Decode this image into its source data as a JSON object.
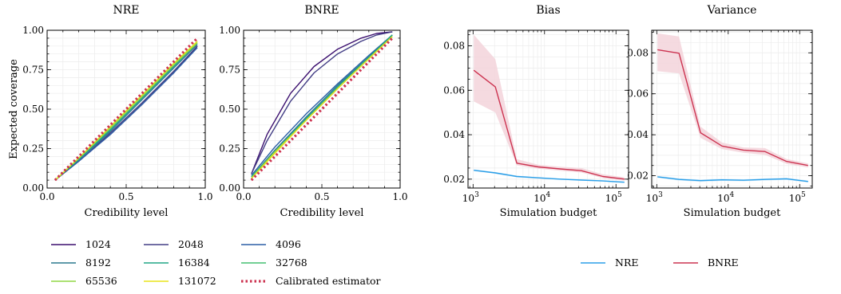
{
  "chart_data": [
    {
      "id": "nre",
      "type": "line",
      "title": "NRE",
      "xlabel": "Credibility level",
      "ylabel": "Expected coverage",
      "xlim": [
        0,
        1
      ],
      "ylim": [
        0,
        1
      ],
      "xticks": [
        "0.0",
        "0.5",
        "1.0"
      ],
      "yticks": [
        "0.00",
        "0.25",
        "0.50",
        "0.75",
        "1.00"
      ],
      "series": [
        {
          "name": "1024",
          "x": [
            0.05,
            0.2,
            0.4,
            0.6,
            0.8,
            0.95
          ],
          "y": [
            0.05,
            0.17,
            0.34,
            0.53,
            0.73,
            0.9
          ]
        },
        {
          "name": "2048",
          "x": [
            0.05,
            0.2,
            0.4,
            0.6,
            0.8,
            0.95
          ],
          "y": [
            0.05,
            0.17,
            0.35,
            0.54,
            0.74,
            0.9
          ]
        },
        {
          "name": "4096",
          "x": [
            0.05,
            0.2,
            0.4,
            0.6,
            0.8,
            0.95
          ],
          "y": [
            0.05,
            0.17,
            0.34,
            0.53,
            0.73,
            0.89
          ]
        },
        {
          "name": "8192",
          "x": [
            0.05,
            0.2,
            0.4,
            0.6,
            0.8,
            0.95
          ],
          "y": [
            0.05,
            0.18,
            0.36,
            0.56,
            0.76,
            0.91
          ]
        },
        {
          "name": "16384",
          "x": [
            0.05,
            0.2,
            0.4,
            0.6,
            0.8,
            0.95
          ],
          "y": [
            0.05,
            0.18,
            0.37,
            0.57,
            0.77,
            0.92
          ]
        },
        {
          "name": "32768",
          "x": [
            0.05,
            0.2,
            0.4,
            0.6,
            0.8,
            0.95
          ],
          "y": [
            0.05,
            0.19,
            0.38,
            0.58,
            0.78,
            0.93
          ]
        },
        {
          "name": "65536",
          "x": [
            0.05,
            0.2,
            0.4,
            0.6,
            0.8,
            0.95
          ],
          "y": [
            0.05,
            0.19,
            0.38,
            0.58,
            0.78,
            0.92
          ]
        },
        {
          "name": "131072",
          "x": [
            0.05,
            0.2,
            0.4,
            0.6,
            0.8,
            0.95
          ],
          "y": [
            0.05,
            0.19,
            0.39,
            0.59,
            0.79,
            0.93
          ]
        }
      ],
      "reference": {
        "name": "Calibrated estimator",
        "x": [
          0.05,
          0.95
        ],
        "y": [
          0.05,
          0.95
        ]
      }
    },
    {
      "id": "bnre",
      "type": "line",
      "title": "BNRE",
      "xlabel": "Credibility level",
      "xlim": [
        0,
        1
      ],
      "ylim": [
        0,
        1
      ],
      "xticks": [
        "0.0",
        "0.5",
        "1.0"
      ],
      "yticks": [
        "0.00",
        "0.25",
        "0.50",
        "0.75",
        "1.00"
      ],
      "series": [
        {
          "name": "1024",
          "x": [
            0.05,
            0.15,
            0.3,
            0.45,
            0.6,
            0.75,
            0.85,
            0.95
          ],
          "y": [
            0.09,
            0.34,
            0.6,
            0.77,
            0.88,
            0.95,
            0.98,
            0.99
          ]
        },
        {
          "name": "2048",
          "x": [
            0.05,
            0.15,
            0.3,
            0.45,
            0.6,
            0.75,
            0.85,
            0.95
          ],
          "y": [
            0.09,
            0.3,
            0.55,
            0.73,
            0.85,
            0.93,
            0.97,
            0.99
          ]
        },
        {
          "name": "4096",
          "x": [
            0.05,
            0.2,
            0.4,
            0.6,
            0.8,
            0.95
          ],
          "y": [
            0.08,
            0.26,
            0.47,
            0.66,
            0.84,
            0.97
          ]
        },
        {
          "name": "8192",
          "x": [
            0.05,
            0.2,
            0.4,
            0.6,
            0.8,
            0.95
          ],
          "y": [
            0.07,
            0.24,
            0.45,
            0.65,
            0.83,
            0.97
          ]
        },
        {
          "name": "16384",
          "x": [
            0.05,
            0.2,
            0.4,
            0.6,
            0.8,
            0.95
          ],
          "y": [
            0.07,
            0.23,
            0.44,
            0.64,
            0.83,
            0.97
          ]
        },
        {
          "name": "32768",
          "x": [
            0.05,
            0.2,
            0.4,
            0.6,
            0.8,
            0.95
          ],
          "y": [
            0.07,
            0.23,
            0.43,
            0.63,
            0.82,
            0.96
          ]
        },
        {
          "name": "65536",
          "x": [
            0.05,
            0.2,
            0.4,
            0.6,
            0.8,
            0.95
          ],
          "y": [
            0.06,
            0.23,
            0.43,
            0.63,
            0.82,
            0.96
          ]
        },
        {
          "name": "131072",
          "x": [
            0.05,
            0.2,
            0.4,
            0.6,
            0.8,
            0.95
          ],
          "y": [
            0.06,
            0.22,
            0.43,
            0.63,
            0.82,
            0.96
          ]
        }
      ],
      "reference": {
        "name": "Calibrated estimator",
        "x": [
          0.05,
          0.95
        ],
        "y": [
          0.05,
          0.95
        ]
      }
    },
    {
      "id": "bias",
      "type": "line",
      "title": "Bias",
      "xlabel": "Simulation budget",
      "xscale": "log",
      "xlim": [
        850,
        150000
      ],
      "ylim": [
        0.016,
        0.087
      ],
      "xticks": [
        {
          "v": 1000,
          "base": "10",
          "exp": "3"
        },
        {
          "v": 10000,
          "base": "10",
          "exp": "4"
        },
        {
          "v": 100000,
          "base": "10",
          "exp": "5"
        }
      ],
      "yticks": [
        "0.02",
        "0.04",
        "0.06",
        "0.08"
      ],
      "series": [
        {
          "name": "NRE",
          "x": [
            1024,
            2048,
            4096,
            8192,
            16384,
            32768,
            65536,
            131072
          ],
          "y": [
            0.024,
            0.0228,
            0.0212,
            0.0206,
            0.02,
            0.0196,
            0.0192,
            0.0186
          ],
          "lower": [
            0.0236,
            0.0224,
            0.0208,
            0.0203,
            0.0197,
            0.0193,
            0.0189,
            0.0183
          ],
          "upper": [
            0.0244,
            0.0232,
            0.0216,
            0.0209,
            0.0203,
            0.0199,
            0.0195,
            0.0189
          ]
        },
        {
          "name": "BNRE",
          "x": [
            1024,
            2048,
            4096,
            8192,
            16384,
            32768,
            65536,
            131072
          ],
          "y": [
            0.069,
            0.0615,
            0.0272,
            0.0255,
            0.0246,
            0.0238,
            0.0212,
            0.02
          ],
          "lower": [
            0.055,
            0.05,
            0.0262,
            0.0247,
            0.0238,
            0.023,
            0.0205,
            0.0193
          ],
          "upper": [
            0.085,
            0.074,
            0.029,
            0.0265,
            0.0256,
            0.025,
            0.0222,
            0.0208
          ]
        }
      ]
    },
    {
      "id": "variance",
      "type": "line",
      "title": "Variance",
      "xlabel": "Simulation budget",
      "xscale": "log",
      "xlim": [
        850,
        150000
      ],
      "ylim": [
        0.014,
        0.091
      ],
      "xticks": [
        {
          "v": 1000,
          "base": "10",
          "exp": "3"
        },
        {
          "v": 10000,
          "base": "10",
          "exp": "4"
        },
        {
          "v": 100000,
          "base": "10",
          "exp": "5"
        }
      ],
      "yticks": [
        "0.02",
        "0.04",
        "0.06",
        "0.08"
      ],
      "series": [
        {
          "name": "NRE",
          "x": [
            1024,
            2048,
            4096,
            8192,
            16384,
            32768,
            65536,
            131072
          ],
          "y": [
            0.0195,
            0.0182,
            0.0176,
            0.018,
            0.0178,
            0.0182,
            0.0185,
            0.0172
          ],
          "lower": [
            0.019,
            0.0177,
            0.017,
            0.0175,
            0.0173,
            0.0177,
            0.018,
            0.0167
          ],
          "upper": [
            0.02,
            0.0187,
            0.0182,
            0.0185,
            0.0183,
            0.0187,
            0.019,
            0.0177
          ]
        },
        {
          "name": "BNRE",
          "x": [
            1024,
            2048,
            4096,
            8192,
            16384,
            32768,
            65536,
            131072
          ],
          "y": [
            0.0815,
            0.0798,
            0.041,
            0.0345,
            0.0325,
            0.0318,
            0.027,
            0.025
          ],
          "lower": [
            0.071,
            0.07,
            0.0385,
            0.033,
            0.0312,
            0.0302,
            0.0258,
            0.024
          ],
          "upper": [
            0.0895,
            0.088,
            0.044,
            0.0362,
            0.0338,
            0.0335,
            0.0282,
            0.026
          ]
        }
      ]
    }
  ],
  "legend_left": {
    "entries": [
      {
        "label": "1024",
        "color": "#3b0f6f"
      },
      {
        "label": "8192",
        "color": "#2a788e"
      },
      {
        "label": "65536",
        "color": "#90d743"
      },
      {
        "label": "2048",
        "color": "#433e85"
      },
      {
        "label": "16384",
        "color": "#21a585"
      },
      {
        "label": "131072",
        "color": "#e8e419"
      },
      {
        "label": "4096",
        "color": "#2c5fa6"
      },
      {
        "label": "32768",
        "color": "#44bf70"
      },
      {
        "label": "Calibrated estimator",
        "color": "#cc3350",
        "dotted": true
      }
    ]
  },
  "legend_right": {
    "entries": [
      {
        "label": "NRE",
        "color": "#2b9fe8"
      },
      {
        "label": "BNRE",
        "color": "#cc3350"
      }
    ]
  },
  "colors": {
    "budgets": [
      "#3b0f6f",
      "#433e85",
      "#2c5fa6",
      "#2a788e",
      "#21a585",
      "#44bf70",
      "#90d743",
      "#e8e419"
    ],
    "calibrated": "#cc3350",
    "nre": "#2b9fe8",
    "bnre": "#cc3350",
    "bnre_band": "#f3d3da",
    "nre_band": "#cfe7f8",
    "grid": "#ececec"
  }
}
